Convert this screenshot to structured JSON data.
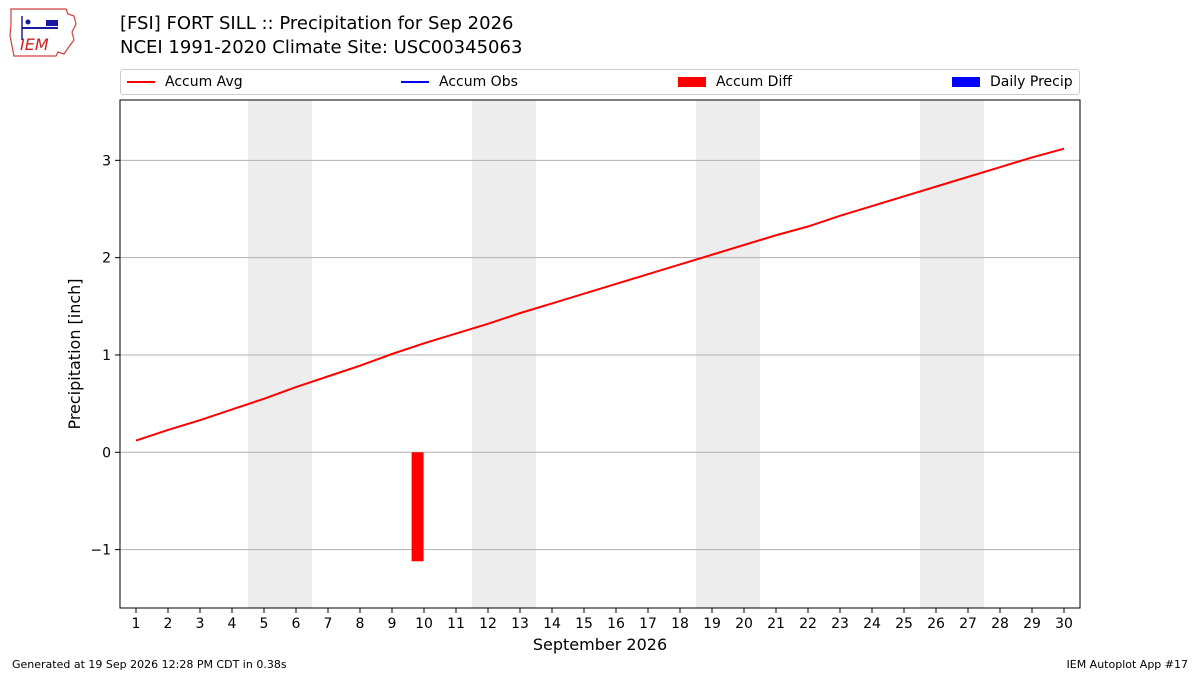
{
  "header": {
    "title_line1": "[FSI] FORT SILL :: Precipitation for Sep 2026",
    "title_line2": "NCEI 1991-2020 Climate Site: USC00345063",
    "logo_text": "IEM"
  },
  "legend": [
    {
      "label": "Accum Avg",
      "color": "#ff0000",
      "kind": "line"
    },
    {
      "label": "Accum Obs",
      "color": "#0000ff",
      "kind": "line"
    },
    {
      "label": "Accum Diff",
      "color": "#ff0000",
      "kind": "box"
    },
    {
      "label": "Daily Precip",
      "color": "#0000ff",
      "kind": "box"
    }
  ],
  "footer": {
    "left": "Generated at 19 Sep 2026 12:28 PM CDT in 0.38s",
    "right": "IEM Autoplot App #17"
  },
  "chart_data": {
    "type": "line",
    "xlabel": "September 2026",
    "ylabel": "Precipitation [inch]",
    "xlim": [
      0.5,
      30.5
    ],
    "ylim": [
      -1.6,
      3.62
    ],
    "x_ticks": [
      1,
      2,
      3,
      4,
      5,
      6,
      7,
      8,
      9,
      10,
      11,
      12,
      13,
      14,
      15,
      16,
      17,
      18,
      19,
      20,
      21,
      22,
      23,
      24,
      25,
      26,
      27,
      28,
      29,
      30
    ],
    "y_ticks": [
      {
        "value": -1,
        "label": "−1"
      },
      {
        "value": 0,
        "label": "0"
      },
      {
        "value": 1,
        "label": "1"
      },
      {
        "value": 2,
        "label": "2"
      },
      {
        "value": 3,
        "label": "3"
      }
    ],
    "grid": "horizontal",
    "weekend_shading": [
      [
        4.5,
        6.5
      ],
      [
        11.5,
        13.5
      ],
      [
        18.5,
        20.5
      ],
      [
        25.5,
        27.5
      ]
    ],
    "series": [
      {
        "name": "Accum Avg",
        "color": "#ff0000",
        "type": "line",
        "x": [
          1,
          2,
          3,
          4,
          5,
          6,
          7,
          8,
          9,
          10,
          11,
          12,
          13,
          14,
          15,
          16,
          17,
          18,
          19,
          20,
          21,
          22,
          23,
          24,
          25,
          26,
          27,
          28,
          29,
          30
        ],
        "values": [
          0.12,
          0.23,
          0.33,
          0.44,
          0.55,
          0.67,
          0.78,
          0.89,
          1.01,
          1.12,
          1.22,
          1.32,
          1.43,
          1.53,
          1.63,
          1.73,
          1.83,
          1.93,
          2.03,
          2.13,
          2.23,
          2.32,
          2.43,
          2.53,
          2.63,
          2.73,
          2.83,
          2.93,
          3.03,
          3.12
        ]
      },
      {
        "name": "Accum Diff",
        "color": "#ff0000",
        "type": "bar",
        "x": [
          9.8
        ],
        "values": [
          -1.12
        ]
      }
    ]
  }
}
